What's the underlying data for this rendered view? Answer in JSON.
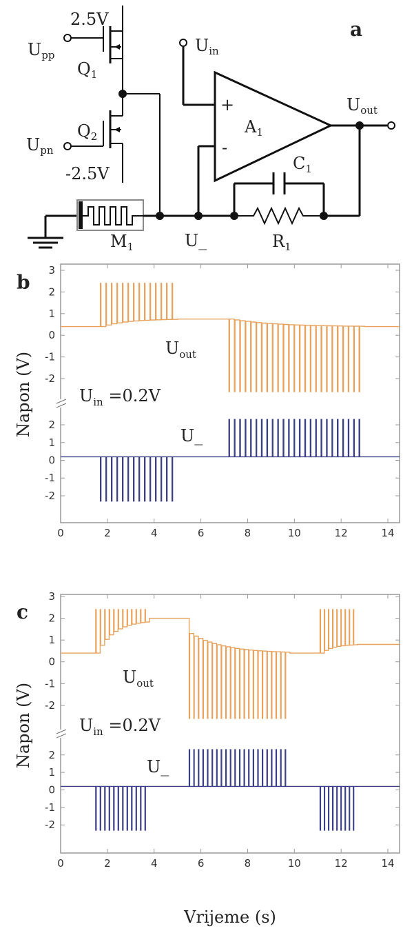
{
  "panels": {
    "a": "a",
    "b": "b",
    "c": "c"
  },
  "circuit": {
    "vdd": "2.5V",
    "vss": "-2.5V",
    "upp": {
      "main": "U",
      "sub": "pp"
    },
    "upn": {
      "main": "U",
      "sub": "pn"
    },
    "q1": {
      "main": "Q",
      "sub": "1"
    },
    "q2": {
      "main": "Q",
      "sub": "2"
    },
    "uin": {
      "main": "U",
      "sub": "in"
    },
    "uout": {
      "main": "U",
      "sub": "out"
    },
    "a1": {
      "main": "A",
      "sub": "1"
    },
    "c1": {
      "main": "C",
      "sub": "1"
    },
    "r1": {
      "main": "R",
      "sub": "1"
    },
    "m1": {
      "main": "M",
      "sub": "1"
    },
    "uminus": "U_",
    "plus": "+",
    "minus": "-"
  },
  "axes": {
    "ylabel": "Napon  (V)",
    "xlabel": "Vrijeme (s)",
    "xticks": [
      "0",
      "2",
      "4",
      "6",
      "8",
      "10",
      "12",
      "14"
    ],
    "upper_yticks": [
      "3",
      "2",
      "1",
      "0",
      "-1",
      "-2"
    ],
    "lower_yticks": [
      "2",
      "1",
      "0",
      "-1",
      "-2"
    ]
  },
  "annotations": {
    "uout": {
      "main": "U",
      "sub": "out"
    },
    "uin": {
      "main": "U",
      "sub": "in",
      "rest": " =0.2V"
    },
    "uminus": "U_"
  },
  "colors": {
    "uout": "#E8A25C",
    "uminus": "#3B3F86",
    "axis": "#999999"
  },
  "chart_data": [
    {
      "panel": "b",
      "type": "line",
      "xlim": [
        0,
        14.5
      ],
      "series": [
        {
          "name": "Uout",
          "ylim": [
            -2.7,
            3
          ],
          "baseline": 0.4,
          "segments": [
            {
              "t": [
                0,
                1.7
              ],
              "kind": "flat",
              "v": 0.4
            },
            {
              "t": [
                1.7,
                5.0
              ],
              "kind": "pulses",
              "n": 14,
              "peak": 2.4,
              "level_from": 0.4,
              "level_to": 0.75
            },
            {
              "t": [
                5.0,
                7.2
              ],
              "kind": "flat",
              "v": 0.75
            },
            {
              "t": [
                7.2,
                13.0
              ],
              "kind": "pulses",
              "n": 25,
              "peak": -2.6,
              "level_from": 0.75,
              "level_to": 0.4
            },
            {
              "t": [
                13.0,
                14.5
              ],
              "kind": "flat",
              "v": 0.4
            }
          ]
        },
        {
          "name": "U_",
          "ylim": [
            -2.7,
            2.7
          ],
          "baseline": 0.2,
          "segments": [
            {
              "t": [
                0,
                1.7
              ],
              "kind": "flat",
              "v": 0.2
            },
            {
              "t": [
                1.7,
                5.0
              ],
              "kind": "pulses",
              "n": 14,
              "peak": -2.3,
              "level_from": 0.2,
              "level_to": 0.2
            },
            {
              "t": [
                5.0,
                7.2
              ],
              "kind": "flat",
              "v": 0.2
            },
            {
              "t": [
                7.2,
                13.0
              ],
              "kind": "pulses",
              "n": 25,
              "peak": 2.3,
              "level_from": 0.2,
              "level_to": 0.2
            },
            {
              "t": [
                13.0,
                14.5
              ],
              "kind": "flat",
              "v": 0.2
            }
          ]
        }
      ]
    },
    {
      "panel": "c",
      "type": "line",
      "xlim": [
        0,
        14.5
      ],
      "series": [
        {
          "name": "Uout",
          "ylim": [
            -2.7,
            3
          ],
          "baseline": 0.4,
          "segments": [
            {
              "t": [
                0,
                1.5
              ],
              "kind": "flat",
              "v": 0.4
            },
            {
              "t": [
                1.5,
                3.8
              ],
              "kind": "pulses",
              "n": 12,
              "peak": 2.4,
              "level_from": 0.4,
              "level_to": 1.9
            },
            {
              "t": [
                3.8,
                5.5
              ],
              "kind": "flat",
              "v": 2.0
            },
            {
              "t": [
                5.5,
                9.8
              ],
              "kind": "pulses",
              "n": 22,
              "peak": -2.6,
              "level_from": 1.3,
              "level_to": 0.4
            },
            {
              "t": [
                9.8,
                11.1
              ],
              "kind": "flat",
              "v": 0.4
            },
            {
              "t": [
                11.1,
                12.7
              ],
              "kind": "pulses",
              "n": 9,
              "peak": 2.4,
              "level_from": 0.4,
              "level_to": 0.8
            },
            {
              "t": [
                12.7,
                14.5
              ],
              "kind": "flat",
              "v": 0.8
            }
          ]
        },
        {
          "name": "U_",
          "ylim": [
            -2.7,
            2.7
          ],
          "baseline": 0.2,
          "segments": [
            {
              "t": [
                0,
                1.5
              ],
              "kind": "flat",
              "v": 0.2
            },
            {
              "t": [
                1.5,
                3.8
              ],
              "kind": "pulses",
              "n": 12,
              "peak": -2.3,
              "level_from": 0.2,
              "level_to": 0.2
            },
            {
              "t": [
                3.8,
                5.5
              ],
              "kind": "flat",
              "v": 0.2
            },
            {
              "t": [
                5.5,
                9.8
              ],
              "kind": "pulses",
              "n": 22,
              "peak": 2.3,
              "level_from": 0.2,
              "level_to": 0.2
            },
            {
              "t": [
                9.8,
                11.1
              ],
              "kind": "flat",
              "v": 0.2
            },
            {
              "t": [
                11.1,
                12.7
              ],
              "kind": "pulses",
              "n": 9,
              "peak": -2.3,
              "level_from": 0.2,
              "level_to": 0.2
            },
            {
              "t": [
                12.7,
                14.5
              ],
              "kind": "flat",
              "v": 0.2
            }
          ]
        }
      ]
    }
  ]
}
